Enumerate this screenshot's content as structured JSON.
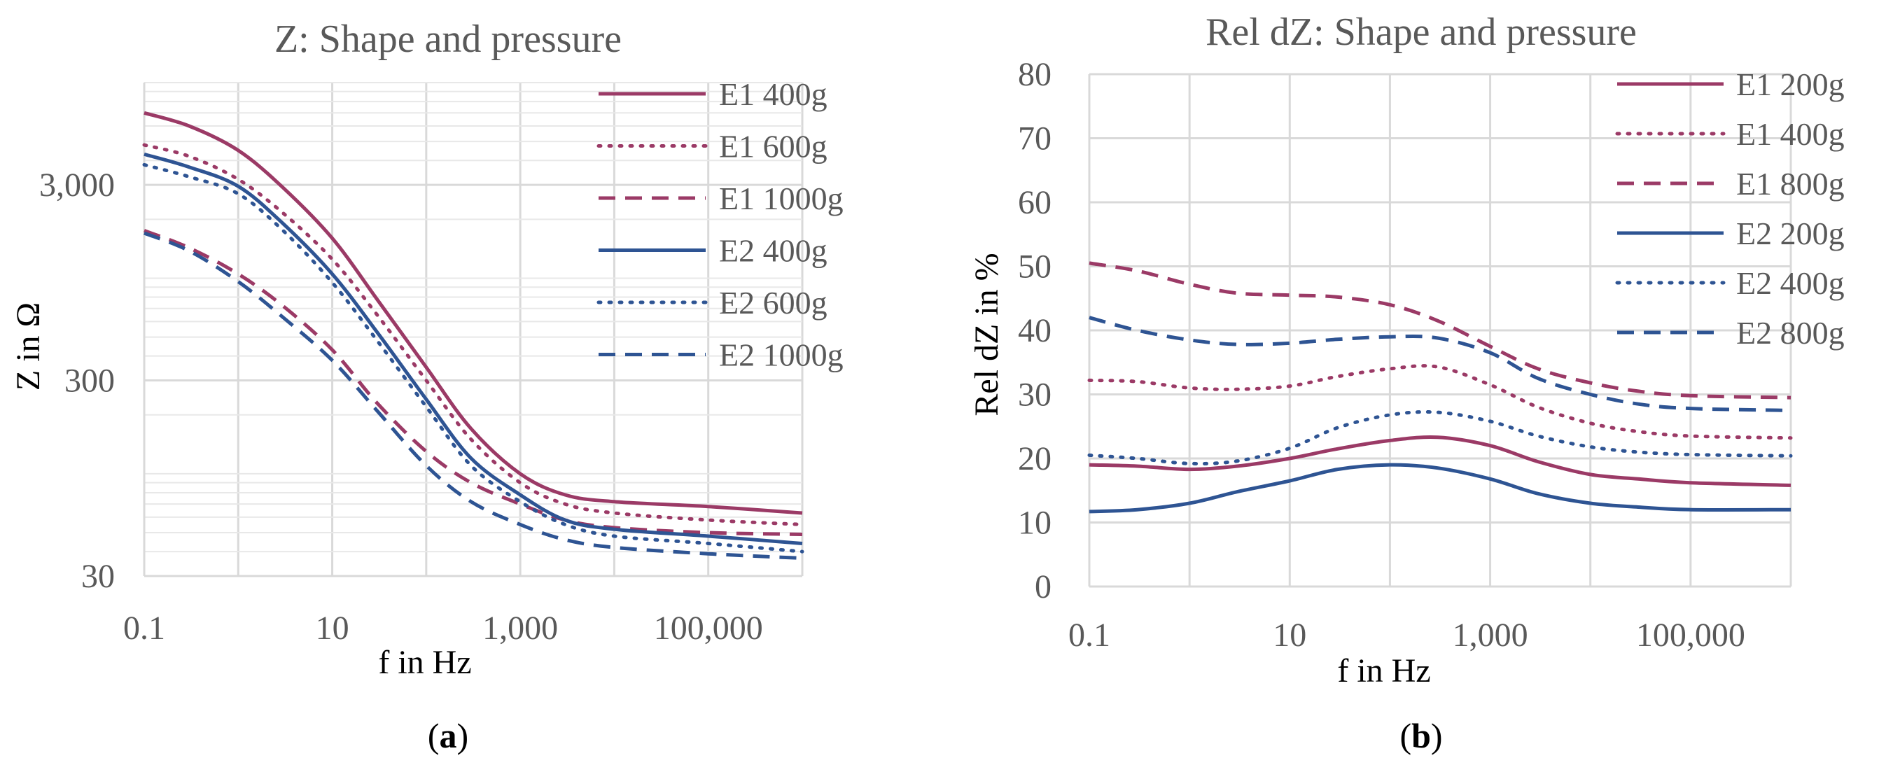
{
  "colors": {
    "e1": "#9b3a66",
    "e2": "#2e5493",
    "text": "#595959",
    "grid": "#d9d9d9",
    "panel_label": "#000000"
  },
  "chart_data": [
    {
      "type": "line",
      "title": "Z: Shape and pressure",
      "xlabel": "f in Hz",
      "ylabel": "Z in Ω",
      "xscale": "log",
      "yscale": "log",
      "xlim": [
        0.1,
        1000000
      ],
      "ylim": [
        30,
        10000
      ],
      "xticks": [
        {
          "v": 0.1,
          "label": "0.1"
        },
        {
          "v": 10,
          "label": "10"
        },
        {
          "v": 1000,
          "label": "1,000"
        },
        {
          "v": 100000,
          "label": "100,000"
        }
      ],
      "yticks": [
        {
          "v": 30,
          "label": "30"
        },
        {
          "v": 300,
          "label": "300"
        },
        {
          "v": 3000,
          "label": "3,000"
        }
      ],
      "grid": true,
      "legend_position": "top-right",
      "panel_label": "a",
      "series": [
        {
          "name": "E1 400g",
          "color": "#9b3a66",
          "dash": "solid",
          "x": [
            0.1,
            0.3,
            1,
            3,
            10,
            30,
            100,
            300,
            1000,
            3000,
            10000,
            100000,
            1000000
          ],
          "y": [
            7000,
            6000,
            4500,
            2900,
            1600,
            780,
            350,
            170,
            100,
            78,
            72,
            68,
            63
          ]
        },
        {
          "name": "E1 600g",
          "color": "#9b3a66",
          "dash": "dotted",
          "x": [
            0.1,
            0.3,
            1,
            3,
            10,
            30,
            100,
            300,
            1000,
            3000,
            10000,
            100000,
            1000000
          ],
          "y": [
            4800,
            4200,
            3200,
            2150,
            1250,
            650,
            300,
            150,
            90,
            70,
            63,
            58,
            55
          ]
        },
        {
          "name": "E1 1000g",
          "color": "#9b3a66",
          "dash": "dashed",
          "x": [
            0.1,
            0.3,
            1,
            3,
            10,
            30,
            100,
            300,
            1000,
            3000,
            10000,
            100000,
            1000000
          ],
          "y": [
            1750,
            1430,
            1050,
            720,
            430,
            230,
            130,
            90,
            70,
            58,
            53,
            50,
            49
          ]
        },
        {
          "name": "E2 400g",
          "color": "#2e5493",
          "dash": "solid",
          "x": [
            0.1,
            0.3,
            1,
            3,
            10,
            30,
            100,
            300,
            1000,
            3000,
            10000,
            100000,
            1000000
          ],
          "y": [
            4300,
            3700,
            2950,
            1900,
            1050,
            530,
            240,
            120,
            78,
            58,
            52,
            48,
            44
          ]
        },
        {
          "name": "E2 600g",
          "color": "#2e5493",
          "dash": "dotted",
          "x": [
            0.1,
            0.3,
            1,
            3,
            10,
            30,
            100,
            300,
            1000,
            3000,
            10000,
            100000,
            1000000
          ],
          "y": [
            3800,
            3300,
            2700,
            1750,
            950,
            480,
            220,
            110,
            72,
            55,
            48,
            44,
            40
          ]
        },
        {
          "name": "E2 1000g",
          "color": "#2e5493",
          "dash": "dashed",
          "x": [
            0.1,
            0.3,
            1,
            3,
            10,
            30,
            100,
            300,
            1000,
            3000,
            10000,
            100000,
            1000000
          ],
          "y": [
            1700,
            1380,
            960,
            630,
            380,
            210,
            110,
            72,
            55,
            46,
            42,
            39,
            37
          ]
        }
      ]
    },
    {
      "type": "line",
      "title": "Rel dZ: Shape and pressure",
      "xlabel": "f in Hz",
      "ylabel": "Rel dZ in %",
      "xscale": "log",
      "yscale": "linear",
      "xlim": [
        0.1,
        1000000
      ],
      "ylim": [
        0,
        80
      ],
      "xticks": [
        {
          "v": 0.1,
          "label": "0.1"
        },
        {
          "v": 10,
          "label": "10"
        },
        {
          "v": 1000,
          "label": "1,000"
        },
        {
          "v": 100000,
          "label": "100,000"
        }
      ],
      "yticks": [
        {
          "v": 0,
          "label": "0"
        },
        {
          "v": 10,
          "label": "10"
        },
        {
          "v": 20,
          "label": "20"
        },
        {
          "v": 30,
          "label": "30"
        },
        {
          "v": 40,
          "label": "40"
        },
        {
          "v": 50,
          "label": "50"
        },
        {
          "v": 60,
          "label": "60"
        },
        {
          "v": 70,
          "label": "70"
        },
        {
          "v": 80,
          "label": "80"
        }
      ],
      "grid": true,
      "legend_position": "top-right",
      "panel_label": "b",
      "series": [
        {
          "name": "E1 200g",
          "color": "#9b3a66",
          "dash": "solid",
          "x": [
            0.1,
            0.3,
            1,
            3,
            10,
            30,
            100,
            300,
            1000,
            3000,
            10000,
            30000,
            100000,
            1000000
          ],
          "y": [
            19,
            18.8,
            18.3,
            18.8,
            20,
            21.5,
            22.8,
            23.3,
            22,
            19.5,
            17.5,
            16.8,
            16.2,
            15.8
          ]
        },
        {
          "name": "E1 400g",
          "color": "#9b3a66",
          "dash": "dotted",
          "x": [
            0.1,
            0.3,
            1,
            3,
            10,
            30,
            100,
            300,
            1000,
            3000,
            10000,
            30000,
            100000,
            1000000
          ],
          "y": [
            32.2,
            32,
            31,
            30.8,
            31.3,
            32.8,
            34,
            34.3,
            31.5,
            28,
            25.5,
            24.2,
            23.5,
            23.2
          ]
        },
        {
          "name": "E1 800g",
          "color": "#9b3a66",
          "dash": "dashed",
          "x": [
            0.1,
            0.3,
            1,
            3,
            10,
            30,
            100,
            300,
            1000,
            3000,
            10000,
            30000,
            100000,
            1000000
          ],
          "y": [
            50.5,
            49.3,
            47.2,
            45.8,
            45.5,
            45.2,
            44,
            41.5,
            37.5,
            34,
            31.8,
            30.5,
            29.8,
            29.5
          ]
        },
        {
          "name": "E2 200g",
          "color": "#2e5493",
          "dash": "solid",
          "x": [
            0.1,
            0.3,
            1,
            3,
            10,
            30,
            100,
            300,
            1000,
            3000,
            10000,
            30000,
            100000,
            1000000
          ],
          "y": [
            11.7,
            12,
            13,
            14.8,
            16.5,
            18.3,
            19,
            18.5,
            16.8,
            14.5,
            13,
            12.4,
            12,
            12
          ]
        },
        {
          "name": "E2 400g",
          "color": "#2e5493",
          "dash": "dotted",
          "x": [
            0.1,
            0.3,
            1,
            3,
            10,
            30,
            100,
            300,
            1000,
            3000,
            10000,
            30000,
            100000,
            1000000
          ],
          "y": [
            20.5,
            20,
            19.2,
            19.6,
            21.6,
            24.8,
            26.8,
            27.2,
            25.8,
            23.5,
            21.8,
            21,
            20.6,
            20.4
          ]
        },
        {
          "name": "E2 800g",
          "color": "#2e5493",
          "dash": "dashed",
          "x": [
            0.1,
            0.3,
            1,
            3,
            10,
            30,
            100,
            300,
            1000,
            3000,
            10000,
            30000,
            100000,
            1000000
          ],
          "y": [
            42,
            40,
            38.5,
            37.8,
            38,
            38.6,
            39,
            38.8,
            36.5,
            32.5,
            30,
            28.5,
            27.8,
            27.5
          ]
        }
      ]
    }
  ]
}
